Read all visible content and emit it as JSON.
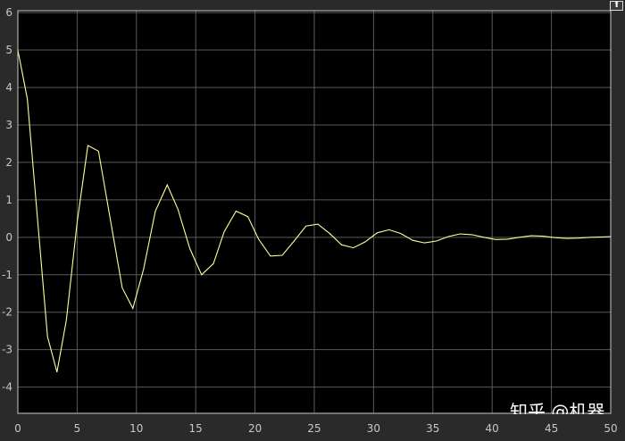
{
  "chart_data": {
    "type": "line",
    "title": "",
    "xlabel": "",
    "ylabel": "",
    "xlim": [
      0,
      50
    ],
    "ylim": [
      -4.7,
      6.05
    ],
    "xticks": [
      "0",
      "5",
      "10",
      "15",
      "20",
      "25",
      "30",
      "35",
      "40",
      "45",
      "50"
    ],
    "yticks": [
      "6",
      "5",
      "4",
      "3",
      "2",
      "1",
      "0",
      "-1",
      "-2",
      "-3",
      "-4"
    ],
    "grid": true,
    "background": "#000000",
    "grid_color": "#5a5a5a",
    "series": [
      {
        "color": "#ffff99",
        "x": [
          0,
          0.8,
          2.5,
          3.3,
          4.1,
          5.0,
          5.9,
          6.8,
          8.8,
          9.7,
          10.6,
          11.6,
          12.6,
          13.5,
          14.5,
          15.5,
          16.5,
          17.4,
          18.4,
          19.4,
          20.3,
          21.3,
          22.3,
          23.3,
          24.3,
          25.3,
          26.3,
          27.3,
          28.3,
          29.3,
          30.3,
          31.3,
          32.3,
          33.3,
          34.3,
          35.3,
          36.3,
          37.3,
          38.3,
          39.3,
          40.3,
          41.3,
          42.3,
          43.3,
          44.3,
          45.3,
          46.3,
          47.3,
          48.3,
          49.3,
          50
        ],
        "y": [
          5,
          3.7,
          -2.65,
          -3.6,
          -2.2,
          0.4,
          2.45,
          2.3,
          -1.35,
          -1.9,
          -0.85,
          0.7,
          1.4,
          0.75,
          -0.3,
          -1.0,
          -0.7,
          0.15,
          0.7,
          0.55,
          -0.05,
          -0.5,
          -0.48,
          -0.1,
          0.3,
          0.35,
          0.1,
          -0.2,
          -0.28,
          -0.12,
          0.12,
          0.2,
          0.1,
          -0.08,
          -0.15,
          -0.1,
          0.02,
          0.09,
          0.07,
          0.0,
          -0.06,
          -0.05,
          0.0,
          0.04,
          0.03,
          -0.01,
          -0.03,
          -0.02,
          0.0,
          0.01,
          0.02
        ]
      }
    ]
  },
  "toolbar": {
    "undock_icon": "arrow-up-icon",
    "undock_glyph": "⬆"
  },
  "watermark": "知乎 @机器"
}
